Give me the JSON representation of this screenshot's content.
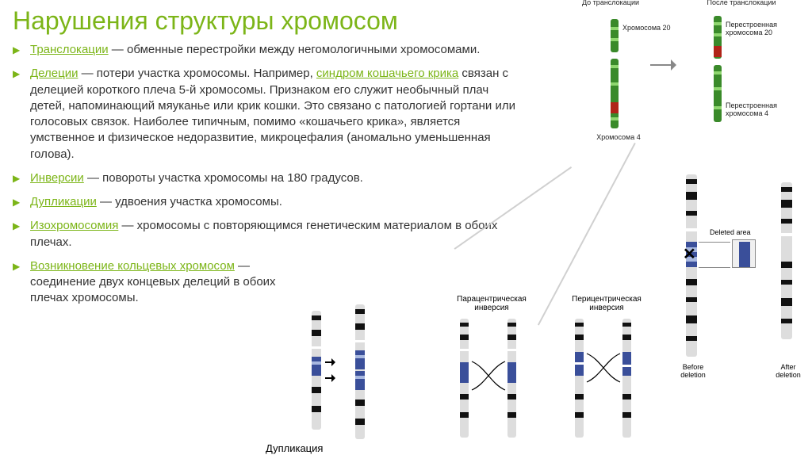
{
  "colors": {
    "accent": "#7cb518",
    "text": "#333333",
    "link": "#7cb518",
    "chrom_green": "#3a8a2a",
    "chrom_green_light": "#8fd66f",
    "chrom_red": "#b02418",
    "chrom_blue": "#3a4f9a",
    "chrom_blue_light": "#a8b8e0",
    "chrom_dark": "#222222",
    "chrom_grey": "#aaaaaa",
    "band_black": "#111111",
    "band_white": "#ffffff"
  },
  "title": "Нарушения структуры хромосом",
  "bullets": [
    {
      "term": "Транслокации",
      "text": " — обменные перестройки между негомологичными хромосомами."
    },
    {
      "term": "Делеции",
      "prelink": " — потери участка хромосомы. Например, ",
      "link": "синдром кошачьего крика",
      "text": " связан с делецией короткого плеча 5-й хромосомы. Признаком его служит необычный плач детей, напоминающий мяуканье или крик кошки. Это связано с патологией гортани или голосовых связок. Наиболее типичным, помимо «кошачьего крика», является умственное и физическое недоразвитие, микроцефалия (аномально уменьшенная голова)."
    },
    {
      "term": "Инверсии",
      "text": " — повороты участка хромосомы на 180 градусов."
    },
    {
      "term": "Дупликации",
      "text": " — удвоения участка хромосомы."
    },
    {
      "term": "Изохромосомия",
      "text": " — хромосомы с повторяющимся генетическим материалом в обоих плечах."
    },
    {
      "term": "Возникновение кольцевых хромосом",
      "text": " — соединение двух концевых делеций в обоих плечах хромосомы."
    }
  ],
  "transloc": {
    "before_title": "До транслокации",
    "after_title": "После транслокации",
    "chr20": "Хромосома 20",
    "chr20_r": "Перестроенная хромосома 20",
    "chr4": "Хромосома 4",
    "chr4_r": "Перестроенная хромосома 4"
  },
  "deletion": {
    "area": "Deleted area",
    "before": "Before deletion",
    "after": "After deletion"
  },
  "duplication_label": "Дупликация",
  "inversion": {
    "para": "Парацентрическая инверсия",
    "peri": "Перицентрическая инверсия"
  }
}
